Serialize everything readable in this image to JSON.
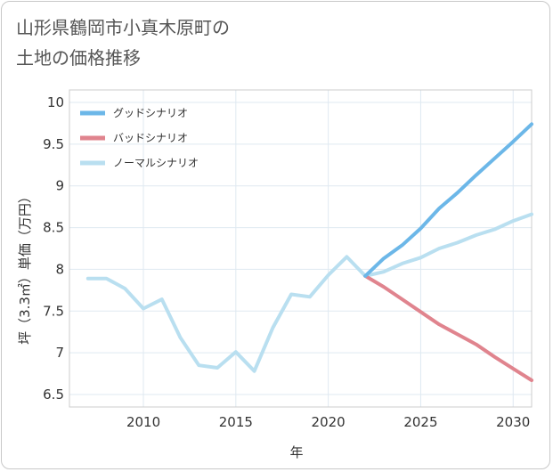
{
  "title_line1": "山形県鶴岡市小真木原町の",
  "title_line2": "土地の価格推移",
  "chart_data": {
    "type": "line",
    "title": "山形県鶴岡市小真木原町の土地の価格推移",
    "xlabel": "年",
    "ylabel": "坪（3.3㎡）単価（万円）",
    "xlim": [
      2006,
      2031
    ],
    "ylim": [
      6.35,
      10.15
    ],
    "xticks": [
      2010,
      2015,
      2020,
      2025,
      2030
    ],
    "yticks": [
      6.5,
      7,
      7.5,
      8,
      8.5,
      9,
      9.5,
      10
    ],
    "ytick_labels": [
      "6.5",
      "7",
      "7.5",
      "8",
      "8.5",
      "9",
      "9.5",
      "10"
    ],
    "grid": true,
    "legend_position": "top-left",
    "series": [
      {
        "name": "グッドシナリオ",
        "color": "#6cb7e8",
        "x": [
          2022,
          2023,
          2024,
          2025,
          2026,
          2027,
          2028,
          2029,
          2030,
          2031
        ],
        "y": [
          7.92,
          8.13,
          8.29,
          8.49,
          8.73,
          8.92,
          9.13,
          9.33,
          9.53,
          9.74
        ]
      },
      {
        "name": "バッドシナリオ",
        "color": "#e0848e",
        "x": [
          2022,
          2023,
          2024,
          2025,
          2026,
          2027,
          2028,
          2029,
          2030,
          2031
        ],
        "y": [
          7.92,
          7.79,
          7.64,
          7.49,
          7.34,
          7.22,
          7.1,
          6.95,
          6.81,
          6.67
        ]
      },
      {
        "name": "ノーマルシナリオ",
        "color": "#b9dff0",
        "x": [
          2007,
          2008,
          2009,
          2010,
          2011,
          2012,
          2013,
          2014,
          2015,
          2016,
          2017,
          2018,
          2019,
          2020,
          2021,
          2022,
          2023,
          2024,
          2025,
          2026,
          2027,
          2028,
          2029,
          2030,
          2031
        ],
        "y": [
          7.89,
          7.89,
          7.77,
          7.53,
          7.64,
          7.18,
          6.85,
          6.82,
          7.01,
          6.78,
          7.3,
          7.7,
          7.67,
          7.93,
          8.15,
          7.92,
          7.97,
          8.07,
          8.14,
          8.25,
          8.32,
          8.41,
          8.48,
          8.58,
          8.66
        ]
      }
    ]
  }
}
